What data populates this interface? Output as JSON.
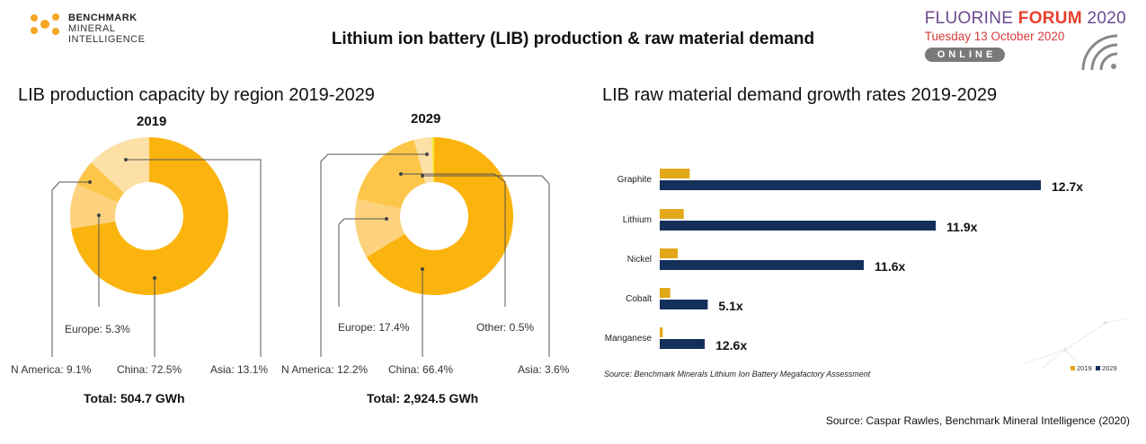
{
  "header": {
    "logo_line1": "BENCHMARK",
    "logo_line2": "MINERAL",
    "logo_line3": "INTELLIGENCE",
    "title": "Lithium ion battery (LIB) production & raw material demand",
    "forum_name_a": "FLUORINE ",
    "forum_name_b": "FORUM",
    "forum_name_c": " 2020",
    "forum_date": "Tuesday 13 October 2020",
    "forum_online": "ONLINE"
  },
  "left_section": {
    "title": "LIB production capacity by region 2019-2029"
  },
  "right_section": {
    "title": "LIB raw material demand growth rates 2019-2029"
  },
  "source": "Source: Caspar Rawles, Benchmark Mineral Intelligence (2020)",
  "colors": {
    "china": "#fbb40e",
    "asia": "#fde0a6",
    "europe": "#fdc64a",
    "namerica": "#fcd27e",
    "other": "#f6e93c",
    "bar2019": "#e3a81a",
    "bar2029": "#14305a"
  },
  "chart_data": [
    {
      "type": "pie",
      "title": "2019",
      "labels": [
        "China: 72.5%",
        "N America: 9.1%",
        "Europe: 5.3%",
        "Asia: 13.1%"
      ],
      "slices": [
        {
          "name": "China",
          "value": 72.5
        },
        {
          "name": "N America",
          "value": 9.1
        },
        {
          "name": "Europe",
          "value": 5.3
        },
        {
          "name": "Asia",
          "value": 13.1
        }
      ],
      "total": "Total: 504.7 GWh"
    },
    {
      "type": "pie",
      "title": "2029",
      "labels": [
        "China: 66.4%",
        "N America: 12.2%",
        "Europe: 17.4%",
        "Asia: 3.6%",
        "Other: 0.5%"
      ],
      "slices": [
        {
          "name": "China",
          "value": 66.4
        },
        {
          "name": "N America",
          "value": 12.2
        },
        {
          "name": "Europe",
          "value": 17.4
        },
        {
          "name": "Asia",
          "value": 3.6
        },
        {
          "name": "Other",
          "value": 0.5
        }
      ],
      "total": "Total: 2,924.5 GWh"
    },
    {
      "type": "bar",
      "orientation": "horizontal",
      "categories": [
        "Graphite",
        "Lithium",
        "Nickel",
        "Cobalt",
        "Manganese"
      ],
      "series": [
        {
          "name": "2019",
          "values": [
            1.0,
            0.8,
            0.6,
            0.35,
            0.1
          ]
        },
        {
          "name": "2029",
          "values": [
            12.7,
            9.2,
            6.8,
            1.6,
            1.5
          ]
        }
      ],
      "growth_labels": [
        "12.7x",
        "11.9x",
        "11.6x",
        "5.1x",
        "12.6x"
      ],
      "note": "Source: Benchmark Minerals Lithium Ion Battery Megafactory Assessment",
      "legend": "bottom-right"
    }
  ]
}
